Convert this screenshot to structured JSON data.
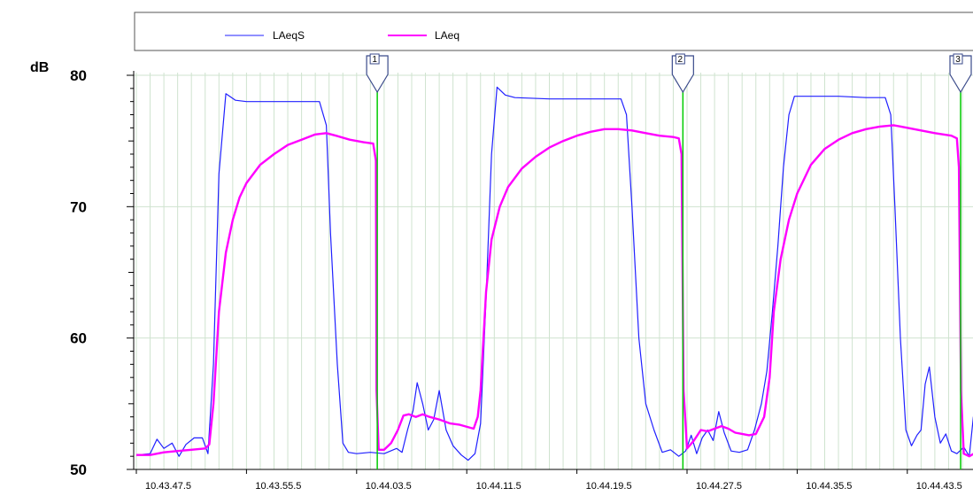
{
  "chart_data": {
    "type": "line",
    "y_unit_label": "dB",
    "ylim": [
      50,
      80
    ],
    "yticks": [
      50,
      60,
      70,
      80
    ],
    "xlim": [
      0,
      61.0
    ],
    "xticks": [
      {
        "t": 0,
        "label": "10.43.47.5"
      },
      {
        "t": 8,
        "label": "10.43.55.5"
      },
      {
        "t": 16,
        "label": "10.44.03.5"
      },
      {
        "t": 24,
        "label": "10.44.11.5"
      },
      {
        "t": 32,
        "label": "10.44.19.5"
      },
      {
        "t": 40,
        "label": "10.44.27.5"
      },
      {
        "t": 48,
        "label": "10.44.35.5"
      },
      {
        "t": 56,
        "label": "10.44.43.5"
      }
    ],
    "grid": true,
    "legend_position": "top",
    "colors": {
      "LAeqS": "#2020ff",
      "LAeq": "#ff00ff",
      "markers": "#00cc00"
    },
    "series": [
      {
        "name": "LAeqS",
        "color": "#2020ff",
        "points": [
          [
            0,
            51.1
          ],
          [
            1.0,
            51.2
          ],
          [
            1.5,
            52.3
          ],
          [
            2.0,
            51.6
          ],
          [
            2.6,
            52.0
          ],
          [
            3.1,
            51.0
          ],
          [
            3.6,
            51.9
          ],
          [
            4.2,
            52.4
          ],
          [
            4.8,
            52.4
          ],
          [
            5.2,
            51.2
          ],
          [
            5.6,
            58.0
          ],
          [
            6.0,
            72.5
          ],
          [
            6.5,
            78.6
          ],
          [
            7.2,
            78.1
          ],
          [
            8.0,
            78.0
          ],
          [
            10.0,
            78.0
          ],
          [
            12.0,
            78.0
          ],
          [
            13.3,
            78.0
          ],
          [
            13.8,
            76.2
          ],
          [
            14.1,
            68.0
          ],
          [
            14.6,
            58.0
          ],
          [
            15.0,
            52.0
          ],
          [
            15.4,
            51.3
          ],
          [
            16.0,
            51.2
          ],
          [
            17.0,
            51.3
          ],
          [
            18.0,
            51.2
          ],
          [
            18.9,
            51.6
          ],
          [
            19.3,
            51.3
          ],
          [
            19.7,
            53.0
          ],
          [
            20.1,
            54.5
          ],
          [
            20.4,
            56.6
          ],
          [
            20.8,
            55.0
          ],
          [
            21.2,
            53.0
          ],
          [
            21.6,
            53.8
          ],
          [
            22.0,
            56.0
          ],
          [
            22.5,
            53.0
          ],
          [
            23.0,
            51.8
          ],
          [
            23.6,
            51.1
          ],
          [
            24.1,
            50.7
          ],
          [
            24.6,
            51.2
          ],
          [
            25.0,
            53.5
          ],
          [
            25.4,
            63.0
          ],
          [
            25.8,
            74.0
          ],
          [
            26.2,
            79.1
          ],
          [
            26.8,
            78.5
          ],
          [
            27.5,
            78.3
          ],
          [
            30.0,
            78.2
          ],
          [
            33.0,
            78.2
          ],
          [
            35.2,
            78.2
          ],
          [
            35.6,
            77.0
          ],
          [
            36.0,
            70.0
          ],
          [
            36.5,
            60.0
          ],
          [
            37.0,
            55.0
          ],
          [
            37.6,
            53.0
          ],
          [
            38.2,
            51.3
          ],
          [
            38.8,
            51.5
          ],
          [
            39.4,
            51.0
          ],
          [
            39.9,
            51.4
          ],
          [
            40.3,
            52.6
          ],
          [
            40.7,
            51.2
          ],
          [
            41.1,
            52.4
          ],
          [
            41.5,
            53.0
          ],
          [
            41.9,
            52.2
          ],
          [
            42.3,
            54.4
          ],
          [
            42.7,
            52.8
          ],
          [
            43.2,
            51.4
          ],
          [
            43.8,
            51.3
          ],
          [
            44.4,
            51.5
          ],
          [
            44.9,
            53.0
          ],
          [
            45.4,
            55.0
          ],
          [
            45.8,
            57.5
          ],
          [
            46.2,
            62.0
          ],
          [
            46.6,
            67.0
          ],
          [
            47.0,
            73.0
          ],
          [
            47.4,
            77.0
          ],
          [
            47.8,
            78.4
          ],
          [
            49.0,
            78.4
          ],
          [
            51.0,
            78.4
          ],
          [
            53.0,
            78.3
          ],
          [
            54.4,
            78.3
          ],
          [
            54.8,
            77.0
          ],
          [
            55.1,
            70.0
          ],
          [
            55.5,
            60.0
          ],
          [
            55.9,
            53.0
          ],
          [
            56.3,
            51.8
          ],
          [
            56.7,
            52.6
          ],
          [
            57.0,
            53.0
          ],
          [
            57.3,
            56.5
          ],
          [
            57.6,
            57.8
          ],
          [
            58.0,
            54.0
          ],
          [
            58.4,
            52.0
          ],
          [
            58.8,
            52.7
          ],
          [
            59.2,
            51.4
          ],
          [
            59.6,
            51.2
          ],
          [
            60.1,
            51.7
          ],
          [
            60.5,
            51.0
          ],
          [
            60.8,
            54.0
          ],
          [
            61.0,
            54.5
          ]
        ]
      },
      {
        "name": "LAeq",
        "color": "#ff00ff",
        "points": [
          [
            0,
            51.1
          ],
          [
            1.0,
            51.1
          ],
          [
            2.0,
            51.3
          ],
          [
            3.0,
            51.4
          ],
          [
            4.0,
            51.5
          ],
          [
            5.0,
            51.6
          ],
          [
            5.3,
            51.9
          ],
          [
            5.6,
            55.0
          ],
          [
            6.0,
            62.0
          ],
          [
            6.5,
            66.5
          ],
          [
            7.0,
            69.0
          ],
          [
            7.5,
            70.7
          ],
          [
            8.0,
            71.8
          ],
          [
            9.0,
            73.2
          ],
          [
            10.0,
            74.0
          ],
          [
            11.0,
            74.7
          ],
          [
            12.0,
            75.1
          ],
          [
            13.0,
            75.5
          ],
          [
            13.8,
            75.6
          ],
          [
            14.5,
            75.4
          ],
          [
            15.5,
            75.1
          ],
          [
            16.5,
            74.9
          ],
          [
            17.2,
            74.8
          ],
          [
            17.4,
            73.5
          ],
          [
            17.45,
            56.0
          ],
          [
            17.6,
            51.5
          ],
          [
            18.0,
            51.5
          ],
          [
            18.5,
            52.0
          ],
          [
            19.0,
            53.0
          ],
          [
            19.4,
            54.1
          ],
          [
            19.8,
            54.2
          ],
          [
            20.3,
            54.0
          ],
          [
            20.8,
            54.2
          ],
          [
            21.3,
            54.0
          ],
          [
            22.0,
            53.8
          ],
          [
            22.8,
            53.5
          ],
          [
            23.5,
            53.4
          ],
          [
            24.5,
            53.1
          ],
          [
            24.8,
            54.0
          ],
          [
            25.0,
            56.0
          ],
          [
            25.4,
            63.5
          ],
          [
            25.8,
            67.5
          ],
          [
            26.4,
            70.0
          ],
          [
            27.0,
            71.5
          ],
          [
            28.0,
            72.9
          ],
          [
            29.0,
            73.8
          ],
          [
            30.0,
            74.5
          ],
          [
            31.0,
            75.0
          ],
          [
            32.0,
            75.4
          ],
          [
            33.0,
            75.7
          ],
          [
            34.0,
            75.9
          ],
          [
            35.0,
            75.9
          ],
          [
            36.0,
            75.8
          ],
          [
            37.0,
            75.6
          ],
          [
            38.0,
            75.4
          ],
          [
            39.0,
            75.3
          ],
          [
            39.4,
            75.2
          ],
          [
            39.6,
            74.0
          ],
          [
            39.75,
            56.0
          ],
          [
            40.0,
            51.6
          ],
          [
            40.5,
            52.2
          ],
          [
            41.0,
            53.0
          ],
          [
            41.5,
            52.9
          ],
          [
            42.0,
            53.1
          ],
          [
            42.5,
            53.3
          ],
          [
            43.0,
            53.1
          ],
          [
            43.5,
            52.8
          ],
          [
            44.0,
            52.7
          ],
          [
            44.5,
            52.6
          ],
          [
            45.0,
            52.7
          ],
          [
            45.6,
            54.0
          ],
          [
            46.0,
            57.0
          ],
          [
            46.3,
            62.0
          ],
          [
            46.8,
            66.0
          ],
          [
            47.4,
            69.0
          ],
          [
            48.0,
            71.0
          ],
          [
            49.0,
            73.2
          ],
          [
            50.0,
            74.4
          ],
          [
            51.0,
            75.1
          ],
          [
            52.0,
            75.6
          ],
          [
            53.0,
            75.9
          ],
          [
            54.0,
            76.1
          ],
          [
            55.0,
            76.2
          ],
          [
            56.0,
            76.0
          ],
          [
            57.0,
            75.8
          ],
          [
            58.0,
            75.6
          ],
          [
            59.2,
            75.4
          ],
          [
            59.6,
            75.2
          ],
          [
            59.75,
            73.0
          ],
          [
            59.9,
            56.0
          ],
          [
            60.1,
            51.2
          ],
          [
            60.5,
            51.0
          ],
          [
            61.0,
            51.3
          ]
        ]
      }
    ],
    "markers": [
      {
        "label": "1",
        "t": 17.5
      },
      {
        "label": "2",
        "t": 39.7
      },
      {
        "label": "3",
        "t": 61.0
      }
    ]
  }
}
